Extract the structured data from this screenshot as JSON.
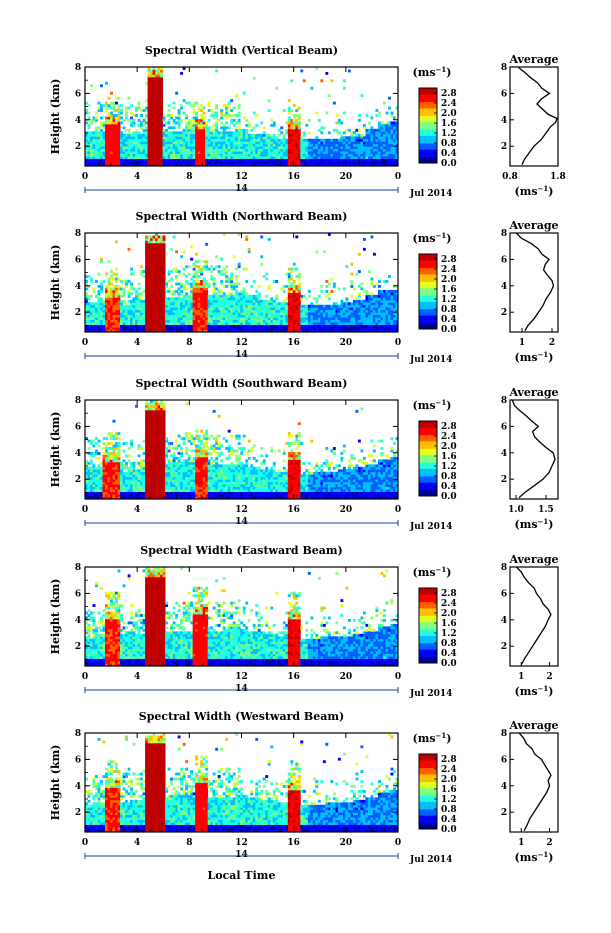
{
  "figure": {
    "xlabel": "Local Time"
  },
  "colorbar": {
    "unit": "(ms",
    "unit_sup": "−1",
    "ticks": [
      "2.8",
      "2.4",
      "2.0",
      "1.6",
      "1.2",
      "0.8",
      "0.4",
      "0.0"
    ],
    "range": [
      0.0,
      3.0
    ],
    "colors": [
      "#00008f",
      "#0000ff",
      "#0060ff",
      "#00bfff",
      "#20ffdf",
      "#80ff80",
      "#dfff20",
      "#ffbf00",
      "#ff6000",
      "#ff0000",
      "#bf0000"
    ]
  },
  "chart_data": [
    {
      "type": "heatmap",
      "title": "Spectral Width (Vertical Beam)",
      "ylabel": "Height (km)",
      "xticks": [
        "0",
        "4",
        "8",
        "12",
        "16",
        "20",
        "0"
      ],
      "date_label": "Jul 2014",
      "date_day": "14",
      "x_range_hours": [
        0,
        24
      ],
      "y_range_km": [
        0.5,
        8
      ],
      "yticks": [
        "8",
        "6",
        "4",
        "2"
      ],
      "layer_top_km": [
        3.2,
        3.2,
        3.1,
        2.9,
        2.9,
        3.3,
        3.1,
        3.2,
        3.3,
        3.4,
        3.2,
        3.2,
        3.3,
        3.0,
        2.8,
        2.6,
        2.5,
        2.5,
        2.5,
        2.6,
        2.7,
        2.8,
        3.4,
        3.7,
        3.8
      ],
      "convective_cores": [
        {
          "start_h": 1.5,
          "end_h": 2.6,
          "top_km": 4.2,
          "value": 2.7
        },
        {
          "start_h": 4.8,
          "end_h": 6.0,
          "top_km": 7.8,
          "value": 3.0
        },
        {
          "start_h": 8.5,
          "end_h": 9.3,
          "top_km": 4.0,
          "value": 2.7
        },
        {
          "start_h": 15.6,
          "end_h": 16.6,
          "top_km": 4.0,
          "value": 2.8
        }
      ],
      "average_profile": {
        "title": "Average",
        "xlabel": "(ms",
        "xlabel_sup": "−1",
        "xticks": [
          "0.8",
          "1.8"
        ],
        "xlim": [
          0.8,
          1.8
        ],
        "ylim": [
          0.5,
          8
        ],
        "yticks": [
          "8",
          "6",
          "4",
          "2"
        ],
        "height_km": [
          0.6,
          1.0,
          1.5,
          2.0,
          2.5,
          3.0,
          3.5,
          3.8,
          4.1,
          4.4,
          4.8,
          5.2,
          5.6,
          6.0,
          6.4,
          6.8,
          7.2,
          7.6,
          8.0
        ],
        "width_ms": [
          1.05,
          1.1,
          1.2,
          1.3,
          1.45,
          1.55,
          1.65,
          1.75,
          1.78,
          1.6,
          1.45,
          1.4,
          1.5,
          1.6,
          1.45,
          1.35,
          1.2,
          1.1,
          1.0
        ]
      }
    },
    {
      "type": "heatmap",
      "title": "Spectral Width (Northward Beam)",
      "ylabel": "Height (km)",
      "xticks": [
        "0",
        "4",
        "8",
        "12",
        "16",
        "20",
        "0"
      ],
      "date_label": "Jul 2014",
      "date_day": "14",
      "x_range_hours": [
        0,
        24
      ],
      "y_range_km": [
        0.5,
        8
      ],
      "yticks": [
        "8",
        "6",
        "4",
        "2"
      ],
      "layer_top_km": [
        2.7,
        2.8,
        2.6,
        2.6,
        2.9,
        3.0,
        3.1,
        3.2,
        3.3,
        3.3,
        3.4,
        3.4,
        3.5,
        3.4,
        3.0,
        2.8,
        2.6,
        2.5,
        2.5,
        2.6,
        2.8,
        3.0,
        3.3,
        3.6,
        3.7
      ],
      "convective_cores": [
        {
          "start_h": 1.5,
          "end_h": 2.6,
          "top_km": 3.8,
          "value": 2.6
        },
        {
          "start_h": 4.6,
          "end_h": 6.2,
          "top_km": 7.8,
          "value": 3.0
        },
        {
          "start_h": 8.3,
          "end_h": 9.4,
          "top_km": 4.4,
          "value": 2.6
        },
        {
          "start_h": 15.5,
          "end_h": 16.6,
          "top_km": 4.1,
          "value": 2.8
        }
      ],
      "average_profile": {
        "title": "Average",
        "xlabel": "(ms",
        "xlabel_sup": "−1",
        "xticks": [
          "1",
          "2"
        ],
        "xlim": [
          0.6,
          2.2
        ],
        "ylim": [
          0.5,
          8
        ],
        "yticks": [
          "8",
          "6",
          "4",
          "2"
        ],
        "height_km": [
          0.6,
          1.0,
          1.5,
          2.0,
          2.5,
          3.0,
          3.5,
          4.0,
          4.4,
          4.8,
          5.2,
          5.6,
          6.0,
          6.4,
          6.8,
          7.2,
          7.6,
          8.0
        ],
        "width_ms": [
          1.1,
          1.2,
          1.4,
          1.55,
          1.7,
          1.8,
          1.95,
          2.05,
          2.0,
          1.85,
          1.7,
          1.75,
          1.9,
          1.7,
          1.55,
          1.35,
          1.0,
          0.8
        ]
      }
    },
    {
      "type": "heatmap",
      "title": "Spectral Width (Southward Beam)",
      "ylabel": "Height (km)",
      "xticks": [
        "0",
        "4",
        "8",
        "12",
        "16",
        "20",
        "0"
      ],
      "date_label": "Jul 2014",
      "date_day": "14",
      "x_range_hours": [
        0,
        24
      ],
      "y_range_km": [
        0.5,
        8
      ],
      "yticks": [
        "8",
        "6",
        "4",
        "2"
      ],
      "layer_top_km": [
        2.8,
        2.9,
        2.7,
        2.6,
        2.8,
        3.0,
        3.2,
        3.3,
        3.4,
        3.3,
        3.2,
        3.1,
        3.1,
        3.0,
        2.7,
        2.6,
        2.5,
        2.4,
        2.5,
        2.6,
        2.8,
        3.0,
        3.2,
        3.5,
        3.6
      ],
      "convective_cores": [
        {
          "start_h": 1.4,
          "end_h": 2.6,
          "top_km": 4.0,
          "value": 2.6
        },
        {
          "start_h": 4.7,
          "end_h": 6.1,
          "top_km": 7.8,
          "value": 3.0
        },
        {
          "start_h": 8.4,
          "end_h": 9.4,
          "top_km": 4.3,
          "value": 2.6
        },
        {
          "start_h": 15.6,
          "end_h": 16.6,
          "top_km": 4.1,
          "value": 2.8
        }
      ],
      "average_profile": {
        "title": "Average",
        "xlabel": "(ms",
        "xlabel_sup": "−1",
        "xticks": [
          "1.0",
          "1.5"
        ],
        "xlim": [
          0.9,
          1.7
        ],
        "ylim": [
          0.5,
          8
        ],
        "yticks": [
          "8",
          "6",
          "4",
          "2"
        ],
        "height_km": [
          0.6,
          1.0,
          1.5,
          2.0,
          2.5,
          3.0,
          3.5,
          4.0,
          4.4,
          4.8,
          5.2,
          5.6,
          6.0,
          6.4,
          6.8,
          7.2,
          7.6,
          8.0
        ],
        "width_ms": [
          1.05,
          1.15,
          1.3,
          1.45,
          1.55,
          1.6,
          1.65,
          1.62,
          1.5,
          1.4,
          1.35,
          1.3,
          1.4,
          1.25,
          1.15,
          1.1,
          1.0,
          0.95
        ]
      }
    },
    {
      "type": "heatmap",
      "title": "Spectral Width (Eastward Beam)",
      "ylabel": "Height (km)",
      "xticks": [
        "0",
        "4",
        "8",
        "12",
        "16",
        "20",
        "0"
      ],
      "date_label": "Jul 2014",
      "date_day": "14",
      "x_range_hours": [
        0,
        24
      ],
      "y_range_km": [
        0.5,
        8
      ],
      "yticks": [
        "8",
        "6",
        "4",
        "2"
      ],
      "layer_top_km": [
        2.6,
        2.7,
        2.8,
        2.9,
        2.9,
        3.0,
        3.1,
        3.2,
        3.2,
        3.2,
        3.2,
        3.3,
        3.4,
        3.2,
        2.9,
        2.7,
        2.6,
        2.5,
        2.6,
        2.7,
        2.8,
        3.0,
        3.2,
        3.5,
        3.6
      ],
      "convective_cores": [
        {
          "start_h": 1.5,
          "end_h": 2.6,
          "top_km": 4.7,
          "value": 2.6
        },
        {
          "start_h": 4.6,
          "end_h": 6.1,
          "top_km": 7.8,
          "value": 3.0
        },
        {
          "start_h": 8.3,
          "end_h": 9.4,
          "top_km": 5.0,
          "value": 2.7
        },
        {
          "start_h": 15.5,
          "end_h": 16.6,
          "top_km": 4.6,
          "value": 2.8
        }
      ],
      "average_profile": {
        "title": "Average",
        "xlabel": "(ms",
        "xlabel_sup": "−1",
        "xticks": [
          "1",
          "2"
        ],
        "xlim": [
          0.6,
          2.3
        ],
        "ylim": [
          0.5,
          8
        ],
        "yticks": [
          "8",
          "6",
          "4",
          "2"
        ],
        "height_km": [
          0.6,
          1.0,
          1.5,
          2.0,
          2.5,
          3.0,
          3.5,
          4.0,
          4.4,
          4.8,
          5.2,
          5.6,
          6.0,
          6.4,
          6.8,
          7.2,
          7.6,
          8.0
        ],
        "width_ms": [
          1.0,
          1.1,
          1.25,
          1.4,
          1.55,
          1.7,
          1.85,
          1.95,
          2.05,
          1.95,
          1.8,
          1.65,
          1.55,
          1.45,
          1.3,
          1.15,
          1.0,
          0.85
        ]
      }
    },
    {
      "type": "heatmap",
      "title": "Spectral Width (Westward Beam)",
      "ylabel": "Height (km)",
      "xticks": [
        "0",
        "4",
        "8",
        "12",
        "16",
        "20",
        "0"
      ],
      "date_label": "Jul 2014",
      "date_day": "14",
      "x_range_hours": [
        0,
        24
      ],
      "y_range_km": [
        0.5,
        8
      ],
      "yticks": [
        "8",
        "6",
        "4",
        "2"
      ],
      "layer_top_km": [
        2.6,
        2.7,
        2.8,
        2.8,
        2.9,
        3.1,
        3.2,
        3.3,
        3.3,
        3.2,
        3.1,
        3.2,
        3.3,
        3.1,
        2.9,
        2.7,
        2.6,
        2.5,
        2.6,
        2.7,
        2.8,
        3.0,
        3.2,
        3.5,
        3.6
      ],
      "convective_cores": [
        {
          "start_h": 1.5,
          "end_h": 2.6,
          "top_km": 4.5,
          "value": 2.6
        },
        {
          "start_h": 4.7,
          "end_h": 6.1,
          "top_km": 7.8,
          "value": 3.0
        },
        {
          "start_h": 8.4,
          "end_h": 9.4,
          "top_km": 4.8,
          "value": 2.7
        },
        {
          "start_h": 15.6,
          "end_h": 16.6,
          "top_km": 4.2,
          "value": 2.8
        }
      ],
      "average_profile": {
        "title": "Average",
        "xlabel": "(ms",
        "xlabel_sup": "−1",
        "xticks": [
          "1",
          "2"
        ],
        "xlim": [
          0.6,
          2.3
        ],
        "ylim": [
          0.5,
          8
        ],
        "yticks": [
          "8",
          "6",
          "4",
          "2"
        ],
        "height_km": [
          0.6,
          1.0,
          1.5,
          2.0,
          2.5,
          3.0,
          3.5,
          4.0,
          4.4,
          4.8,
          5.2,
          5.6,
          6.0,
          6.4,
          6.8,
          7.2,
          7.6,
          8.0
        ],
        "width_ms": [
          1.1,
          1.2,
          1.3,
          1.45,
          1.6,
          1.75,
          1.9,
          2.0,
          1.95,
          2.05,
          1.9,
          1.85,
          1.7,
          1.5,
          1.35,
          1.2,
          1.05,
          0.9
        ]
      }
    }
  ]
}
